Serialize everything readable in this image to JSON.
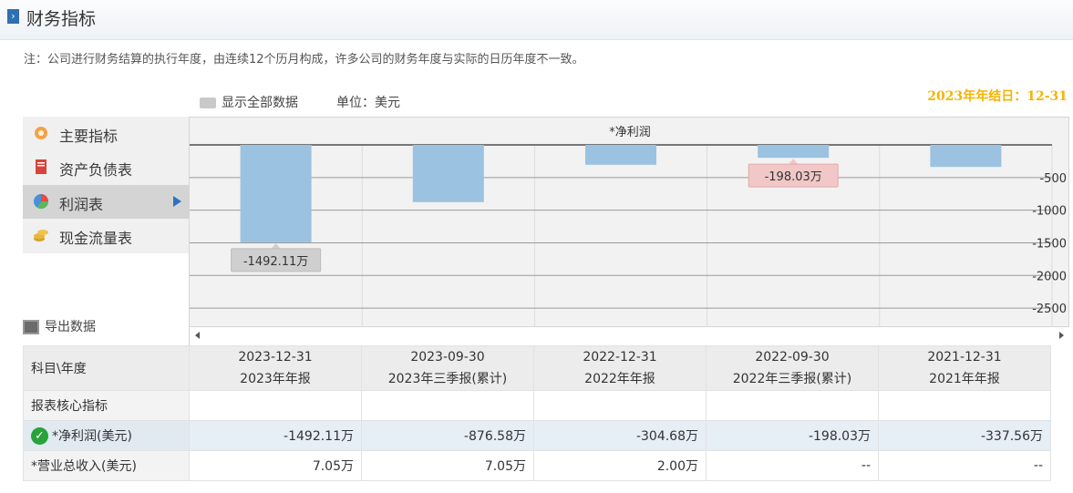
{
  "header": {
    "title": "财务指标",
    "icon": "arrow-right-icon"
  },
  "note": "注：公司进行财务结算的执行年度，由连续12个历月构成，许多公司的财务年度与实际的日历年度不一致。",
  "fiscal_year_end": "2023年年结日：12-31",
  "toolbar": {
    "show_all": "显示全部数据",
    "unit": "单位：美元",
    "export": "导出数据"
  },
  "sidebar": {
    "items": [
      {
        "label": "主要指标",
        "icon": "gear-flower-icon",
        "active": false
      },
      {
        "label": "资产负债表",
        "icon": "document-icon",
        "active": false
      },
      {
        "label": "利润表",
        "icon": "pie-chart-icon",
        "active": true
      },
      {
        "label": "现金流量表",
        "icon": "coins-icon",
        "active": false
      }
    ]
  },
  "chart_data": {
    "type": "bar",
    "title": "*净利润",
    "categories": [
      "2023-12-31",
      "2023-09-30",
      "2022-12-31",
      "2022-09-30",
      "2021-12-31"
    ],
    "series": [
      {
        "name": "*净利润",
        "values": [
          -1492.11,
          -876.58,
          -304.68,
          -198.03,
          -337.56
        ]
      }
    ],
    "ylim": [
      -2800,
      0
    ],
    "yticks": [
      -500,
      -1000,
      -1500,
      -2000,
      -2500
    ],
    "ytick_labels": [
      "-500",
      "-1000",
      "-1500",
      "-2000",
      "-2500"
    ],
    "grid": true,
    "callouts": [
      {
        "index": 0,
        "text": "-1492.11万"
      },
      {
        "index": 3,
        "text": "-198.03万"
      }
    ],
    "bar_color": "#9bc2e0",
    "axis_side": "right"
  },
  "table": {
    "corner": "科目\\年度",
    "columns": [
      {
        "date": "2023-12-31",
        "period": "2023年年报"
      },
      {
        "date": "2023-09-30",
        "period": "2023年三季报(累计)"
      },
      {
        "date": "2022-12-31",
        "period": "2022年年报"
      },
      {
        "date": "2022-09-30",
        "period": "2022年三季报(累计)"
      },
      {
        "date": "2021-12-31",
        "period": "2021年年报"
      }
    ],
    "section": "报表核心指标",
    "rows": [
      {
        "label": "*净利润(美元)",
        "checked": true,
        "values": [
          "-1492.11万",
          "-876.58万",
          "-304.68万",
          "-198.03万",
          "-337.56万"
        ]
      },
      {
        "label": "*营业总收入(美元)",
        "checked": false,
        "values": [
          "7.05万",
          "7.05万",
          "2.00万",
          "--",
          "--"
        ]
      }
    ]
  }
}
